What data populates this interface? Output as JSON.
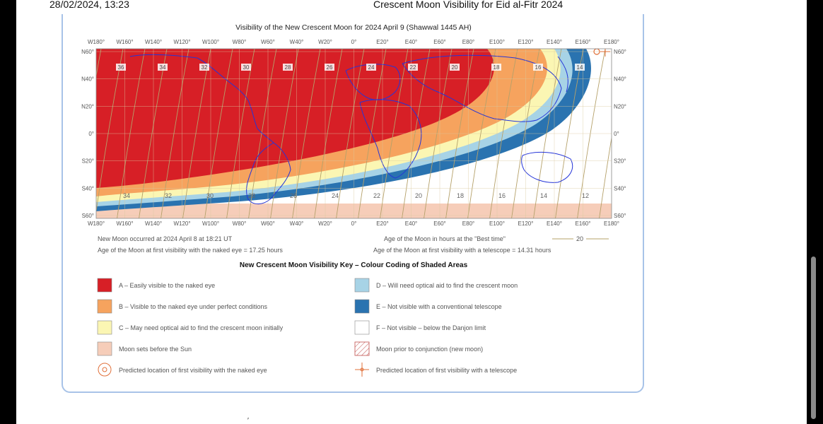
{
  "header": {
    "datetime": "28/02/2024, 13:23",
    "title": "Crescent Moon Visibility for Eid al-Fitr 2024"
  },
  "map": {
    "title": "Visibility of the New Crescent Moon for 2024 April 9 (Shawwal 1445 AH)",
    "lon_labels": [
      "W180°",
      "W160°",
      "W140°",
      "W120°",
      "W100°",
      "W80°",
      "W60°",
      "W40°",
      "W20°",
      "0°",
      "E20°",
      "E40°",
      "E60°",
      "E80°",
      "E100°",
      "E120°",
      "E140°",
      "E160°",
      "E180°"
    ],
    "lat_labels_left": [
      "N60°",
      "N40°",
      "N20°",
      "0°",
      "S20°",
      "S40°",
      "S60°"
    ],
    "lat_labels_right": [
      "N60°",
      "N40°",
      "N20°",
      "0°",
      "S20°",
      "S40°",
      "S60°"
    ],
    "age_labels_north": [
      "36",
      "34",
      "32",
      "30",
      "28",
      "26",
      "24",
      "22",
      "20",
      "18",
      "16",
      "14"
    ],
    "age_labels_south": [
      "34",
      "32",
      "30",
      "28",
      "26",
      "24",
      "22",
      "20",
      "18",
      "16",
      "14",
      "12"
    ],
    "colors": {
      "A": "#d71f26",
      "B": "#f6a35e",
      "C": "#fbf6b3",
      "D": "#a7d3e6",
      "E": "#2a73b0",
      "F": "#ffffff",
      "sets_before_sun": "#f6cdb9",
      "coast": "#2535d8",
      "contour": "#b5a16a"
    }
  },
  "info": {
    "new_moon": "New Moon occurred at 2024 April 8 at 18:21 UT",
    "age_best": "Age of the Moon in hours at the \"Best time\"",
    "age_best_sample": "20",
    "naked_eye_age": "Age of the Moon at first visibility with the naked eye = 17.25 hours",
    "telescope_age": "Age of the Moon at first visibility with a telescope = 14.31 hours"
  },
  "key": {
    "title": "New Crescent Moon Visibility Key – Colour Coding of Shaded Areas",
    "items_left": [
      {
        "label": "A – Easily visible to the naked eye"
      },
      {
        "label": "B – Visible to the naked eye under perfect conditions"
      },
      {
        "label": "C – May need optical aid to find the crescent moon initially"
      },
      {
        "label": "Moon sets before the Sun"
      },
      {
        "label": "Predicted location of first visibility with the naked eye"
      }
    ],
    "items_right": [
      {
        "label": "D – Will need optical aid to find the crescent moon"
      },
      {
        "label": "E – Not visible with a conventional telescope"
      },
      {
        "label": "F – Not visible – below the Danjon limit"
      },
      {
        "label": "Moon prior to conjunction (new moon)"
      },
      {
        "label": "Predicted location of first visibility with a telescope"
      }
    ]
  },
  "footer": {
    "mark": "′"
  }
}
